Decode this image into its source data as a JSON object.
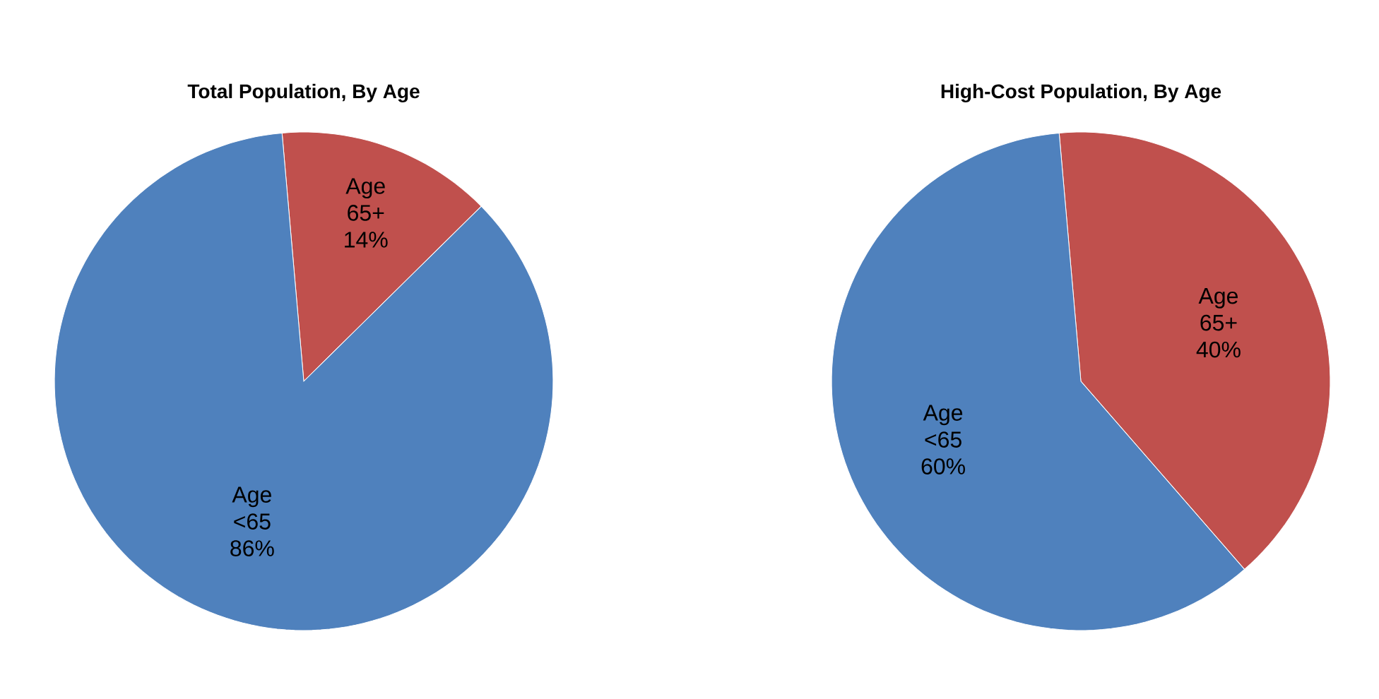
{
  "chart_data": [
    {
      "type": "pie",
      "title": "Total Population, By Age",
      "categories": [
        "Age 65+",
        "Age <65"
      ],
      "values": [
        14,
        86
      ],
      "colors": [
        "#c0504d",
        "#4f81bd"
      ],
      "value_labels": [
        "14%",
        "86%"
      ]
    },
    {
      "type": "pie",
      "title": "High-Cost Population, By Age",
      "categories": [
        "Age 65+",
        "Age <65"
      ],
      "values": [
        40,
        60
      ],
      "colors": [
        "#c0504d",
        "#4f81bd"
      ],
      "value_labels": [
        "40%",
        "60%"
      ]
    }
  ]
}
